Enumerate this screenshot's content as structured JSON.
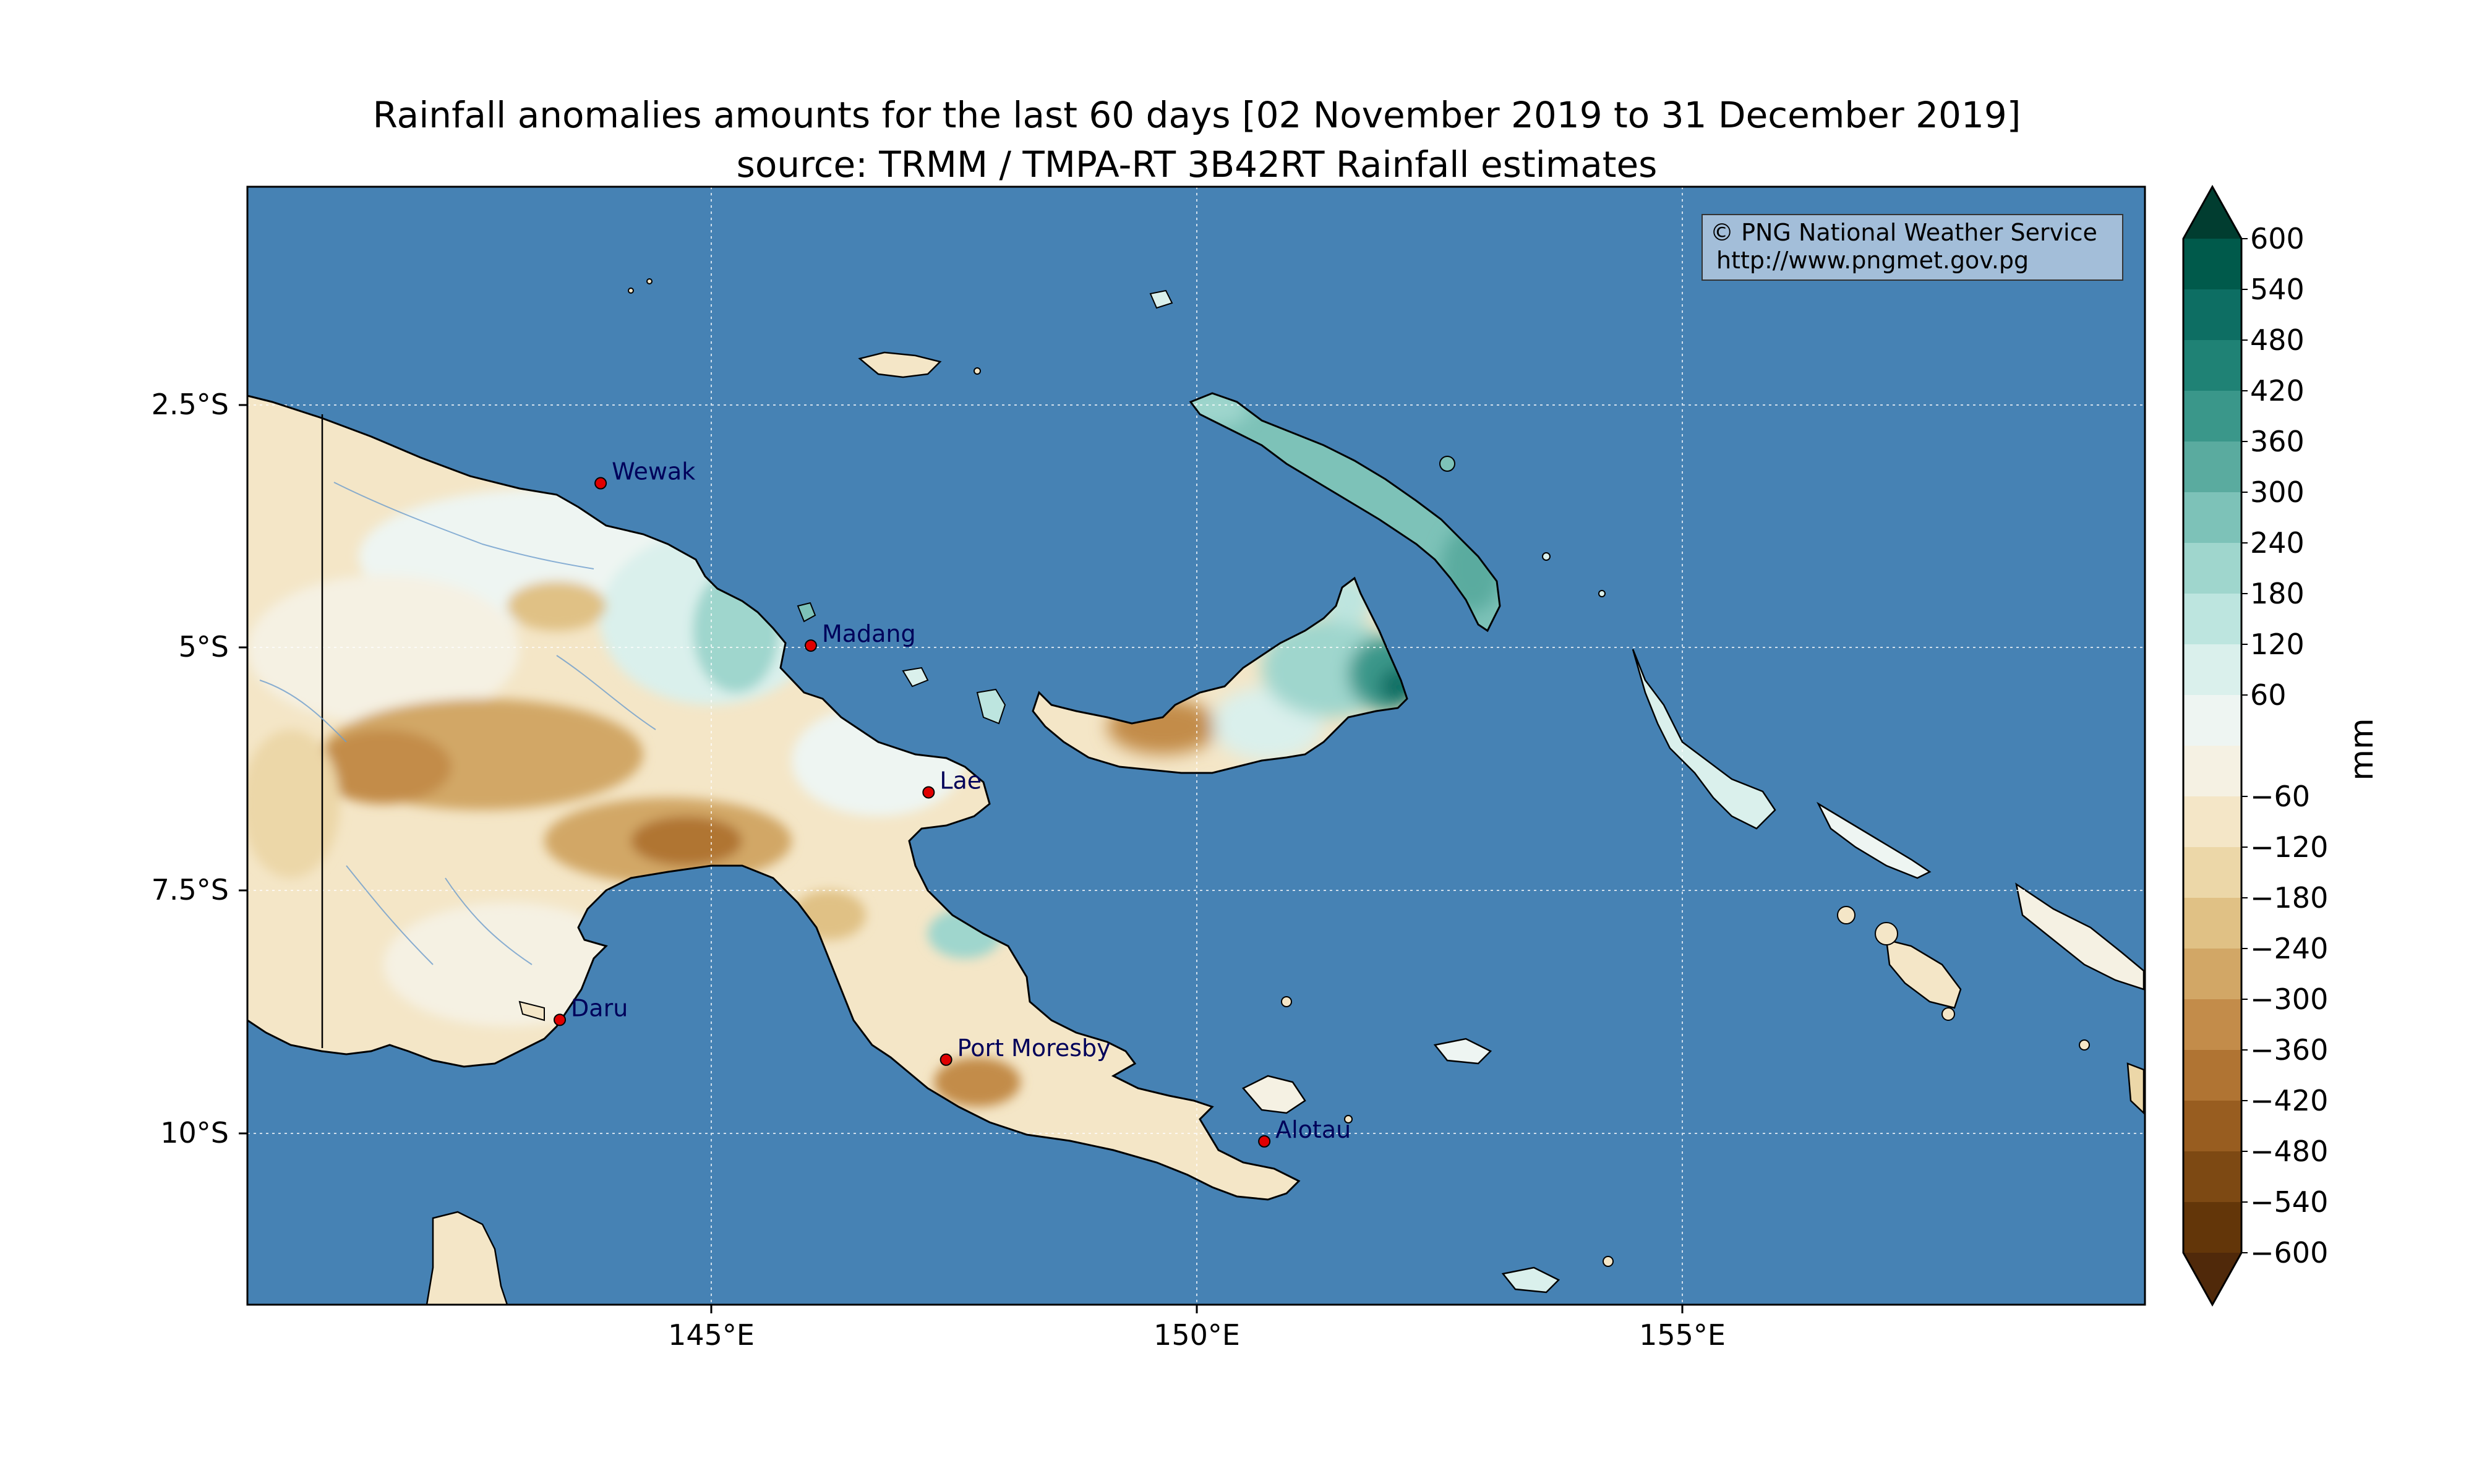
{
  "title": {
    "line1": "Rainfall anomalies amounts for the last 60 days [02 November 2019 to 31 December 2019]",
    "line2": "source: TRMM / TMPA-RT 3B42RT Rainfall estimates"
  },
  "credit": {
    "line1": "© PNG National Weather Service",
    "line2": "http://www.pngmet.gov.pg"
  },
  "axes": {
    "lon_ticks": [
      "145°E",
      "150°E",
      "155°E"
    ],
    "lat_ticks": [
      "2.5°S",
      "5°S",
      "7.5°S",
      "10°S"
    ]
  },
  "cities": [
    {
      "name": "Wewak",
      "lon": 143.63,
      "lat": -3.55
    },
    {
      "name": "Madang",
      "lon": 145.79,
      "lat": -5.22
    },
    {
      "name": "Lae",
      "lon": 147.0,
      "lat": -6.73
    },
    {
      "name": "Daru",
      "lon": 143.21,
      "lat": -9.07
    },
    {
      "name": "Port Moresby",
      "lon": 147.18,
      "lat": -9.48
    },
    {
      "name": "Alotau",
      "lon": 150.45,
      "lat": -10.32
    }
  ],
  "colorbar": {
    "unit": "mm",
    "labels": [
      "600",
      "540",
      "480",
      "420",
      "360",
      "300",
      "240",
      "180",
      "120",
      "60",
      "",
      "−60",
      "−120",
      "−180",
      "−240",
      "−300",
      "−360",
      "−420",
      "−480",
      "−540",
      "−600"
    ],
    "colors": [
      "#013d30",
      "#005a4b",
      "#0d6e63",
      "#1f8275",
      "#3a978a",
      "#5aab9f",
      "#7dc2b8",
      "#9fd6cd",
      "#bde5df",
      "#daf0ec",
      "#eef5f2",
      "#f5f1e3",
      "#f4e6c7",
      "#ecd7a8",
      "#e0c185",
      "#d2a766",
      "#c38c4a",
      "#b07433",
      "#985d20",
      "#7d4913",
      "#633609",
      "#50290a"
    ],
    "colors_order": "top-to-bottom, including over/under extension triangles"
  },
  "map": {
    "ocean_color": "#4682b4",
    "lon_range": [
      140.0,
      159.5
    ],
    "lat_range": [
      -12.0,
      -0.5
    ],
    "grid": true
  }
}
